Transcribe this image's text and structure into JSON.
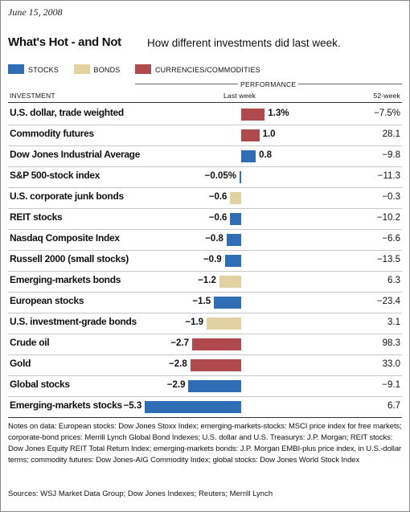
{
  "date": "June 15, 2008",
  "title": "What's Hot - and Not",
  "subtitle": "How different investments did last week.",
  "legend": [
    {
      "label": "STOCKS",
      "color": "#2f6eb5"
    },
    {
      "label": "BONDS",
      "color": "#e2d2a2"
    },
    {
      "label": "CURRENCIES/COMMODITIES",
      "color": "#b04a4e"
    }
  ],
  "headers": {
    "performance": "PERFORMANCE",
    "investment": "INVESTMENT",
    "last_week": "Last week",
    "week52": "52-week"
  },
  "chart_data": {
    "type": "bar",
    "orientation": "horizontal",
    "categories": [
      "U.S. dollar, trade weighted",
      "Commodity futures",
      "Dow Jones Industrial Average",
      "S&P 500-stock index",
      "U.S. corporate junk bonds",
      "REIT stocks",
      "Nasdaq Composite Index",
      "Russell 2000 (small stocks)",
      "Emerging-markets bonds",
      "European stocks",
      "U.S. investment-grade bonds",
      "Crude oil",
      "Gold",
      "Global stocks",
      "Emerging-markets stocks"
    ],
    "values": [
      1.3,
      1.0,
      0.8,
      -0.05,
      -0.6,
      -0.6,
      -0.8,
      -0.9,
      -1.2,
      -1.5,
      -1.9,
      -2.7,
      -2.8,
      -2.9,
      -5.3
    ],
    "value_labels": [
      "1.3%",
      "1.0",
      "0.8",
      "−0.05%",
      "−0.6",
      "−0.6",
      "−0.8",
      "−0.9",
      "−1.2",
      "−1.5",
      "−1.9",
      "−2.7",
      "−2.8",
      "−2.9",
      "−5.3"
    ],
    "groups": [
      "currencies",
      "currencies",
      "stocks",
      "stocks",
      "bonds",
      "stocks",
      "stocks",
      "stocks",
      "bonds",
      "stocks",
      "bonds",
      "currencies",
      "currencies",
      "stocks",
      "stocks"
    ],
    "week52": [
      "−7.5%",
      "28.1",
      "−9.8",
      "−11.3",
      "−0.3",
      "−10.2",
      "−6.6",
      "−13.5",
      "6.3",
      "−23.4",
      "3.1",
      "98.3",
      "33.0",
      "−9.1",
      "6.7"
    ],
    "xlim": [
      -5.3,
      1.3
    ]
  },
  "notes": "Notes on data: European stocks: Dow Jones Stoxx Index; emerging-markets-stocks: MSCI price index for free markets; corporate-bond prices: Merrill Lynch Global Bond Indexes; U.S. dollar and U.S. Treasurys: J.P. Morgan; REIT stocks: Dow Jones Equity REIT Total Return Index; emerging-markets bonds: J.P. Morgan EMBI-plus price index, in U.S.-dollar terms; commodity futures: Dow Jones-AIG Commodity Index; global stocks: Dow Jones World Stock Index",
  "sources": "Sources: WSJ Market Data Group; Dow Jones Indexes; Reuters; Merrill Lynch"
}
